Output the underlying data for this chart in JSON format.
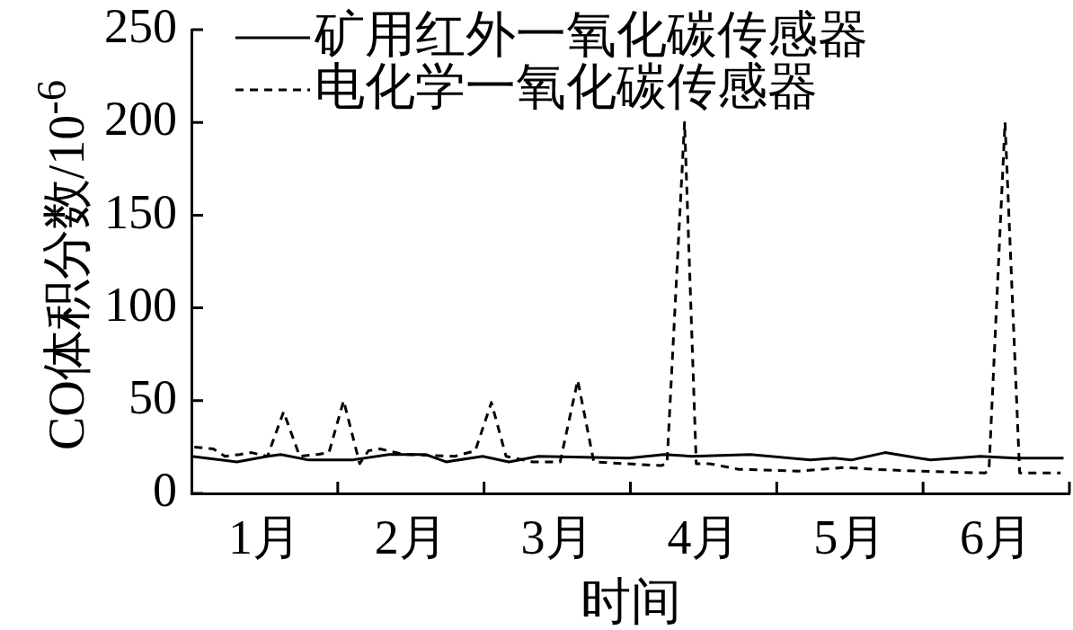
{
  "chart_data": {
    "type": "line",
    "xlabel": "时间",
    "ylabel": "CO体积分数/10$^{-6}$",
    "legend": "top left",
    "xlim": [
      0,
      6
    ],
    "xticks": [
      {
        "value": 0.5,
        "label": "1月"
      },
      {
        "value": 1,
        "label": null
      },
      {
        "value": 1.5,
        "label": "2月"
      },
      {
        "value": 2,
        "label": null
      },
      {
        "value": 2.5,
        "label": "3月"
      },
      {
        "value": 3,
        "label": null
      },
      {
        "value": 3.5,
        "label": "4月"
      },
      {
        "value": 4,
        "label": null
      },
      {
        "value": 4.5,
        "label": "5月"
      },
      {
        "value": 5,
        "label": null
      },
      {
        "value": 5.5,
        "label": "6月"
      },
      {
        "value": 6,
        "label": null
      }
    ],
    "ylim": [
      0,
      250
    ],
    "yticks": [
      0,
      50,
      100,
      150,
      200,
      250
    ],
    "series": [
      {
        "name": "矿用红外一氧化碳传感器",
        "color": "#000000",
        "line_style": "solid",
        "x": [
          0,
          0.31,
          0.52,
          0.61,
          0.8,
          1.1,
          1.35,
          1.6,
          1.74,
          1.99,
          2.17,
          2.37,
          2.99,
          3.23,
          3.42,
          3.82,
          4.23,
          4.39,
          4.51,
          4.74,
          5.05,
          5.39,
          5.63,
          5.96
        ],
        "values": [
          20,
          17,
          20,
          21,
          18,
          18,
          21,
          21,
          17,
          20,
          17,
          20,
          19,
          21,
          20,
          21,
          18,
          19,
          18,
          22,
          18,
          20,
          19,
          19
        ]
      },
      {
        "name": "电化学一氧化碳传感器",
        "color": "#000000",
        "line_style": "dashed",
        "x": [
          0.02,
          0.15,
          0.23,
          0.33,
          0.41,
          0.52,
          0.63,
          0.74,
          0.86,
          0.94,
          1.04,
          1.15,
          1.21,
          1.29,
          1.45,
          1.8,
          1.94,
          2.05,
          2.15,
          2.33,
          2.52,
          2.64,
          2.75,
          2.97,
          3.21,
          3.25,
          3.37,
          3.45,
          3.54,
          3.74,
          4.15,
          4.46,
          4.66,
          4.97,
          5.42,
          5.45,
          5.56,
          5.66,
          5.94
        ],
        "values": [
          25,
          24,
          20,
          21,
          22,
          20,
          44,
          20,
          21,
          22,
          50,
          16,
          23,
          24,
          21,
          20,
          23,
          49,
          20,
          17,
          17,
          61,
          17,
          16,
          15,
          16,
          200,
          16,
          16,
          13,
          12,
          14,
          13,
          12,
          11,
          12,
          200,
          11,
          11
        ]
      }
    ]
  }
}
